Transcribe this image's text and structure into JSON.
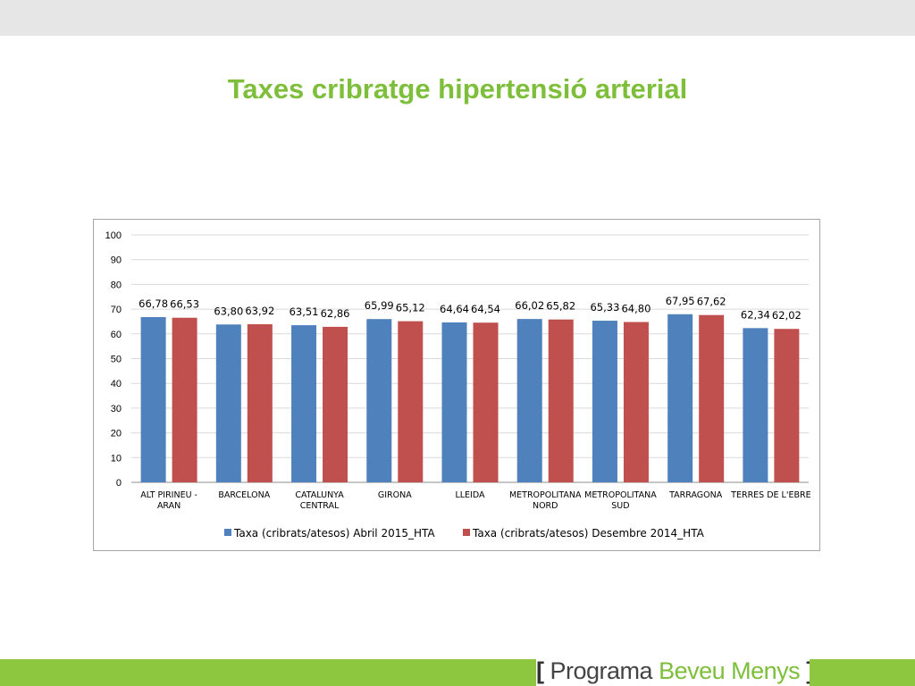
{
  "slide": {
    "title": "Taxes cribratge hipertensió arterial",
    "footer": {
      "open_bracket": "[",
      "word1": "Programa",
      "word2": "Beveu Menys",
      "close_bracket": "]"
    }
  },
  "colors": {
    "title_green": "#7dbe3a",
    "footer_green": "#8dc63f",
    "series_blue": "#4f81bd",
    "series_red": "#c0504d"
  },
  "chart_data": {
    "type": "bar",
    "categories": [
      [
        "ALT PIRINEU -",
        "ARAN"
      ],
      [
        "BARCELONA"
      ],
      [
        "CATALUNYA",
        "CENTRAL"
      ],
      [
        "GIRONA"
      ],
      [
        "LLEIDA"
      ],
      [
        "METROPOLITANA",
        "NORD"
      ],
      [
        "METROPOLITANA",
        "SUD"
      ],
      [
        "TARRAGONA"
      ],
      [
        "TERRES DE L'EBRE"
      ]
    ],
    "series": [
      {
        "name": "Taxa (cribrats/atesos) Abril 2015_HTA",
        "color": "#4f81bd",
        "values": [
          66.78,
          63.8,
          63.51,
          65.99,
          64.64,
          66.02,
          65.33,
          67.95,
          62.34
        ],
        "labels": [
          "66,78",
          "63,80",
          "63,51",
          "65,99",
          "64,64",
          "66,02",
          "65,33",
          "67,95",
          "62,34"
        ]
      },
      {
        "name": "Taxa (cribrats/atesos) Desembre 2014_HTA",
        "color": "#c0504d",
        "values": [
          66.53,
          63.92,
          62.86,
          65.12,
          64.54,
          65.82,
          64.8,
          67.62,
          62.02
        ],
        "labels": [
          "66,53",
          "63,92",
          "62,86",
          "65,12",
          "64,54",
          "65,82",
          "64,80",
          "67,62",
          "62,02"
        ]
      }
    ],
    "ylim": [
      0,
      100
    ],
    "yticks": [
      "0",
      "10",
      "20",
      "30",
      "40",
      "50",
      "60",
      "70",
      "80",
      "90",
      "100"
    ],
    "grid": true,
    "legend": "bottom"
  }
}
